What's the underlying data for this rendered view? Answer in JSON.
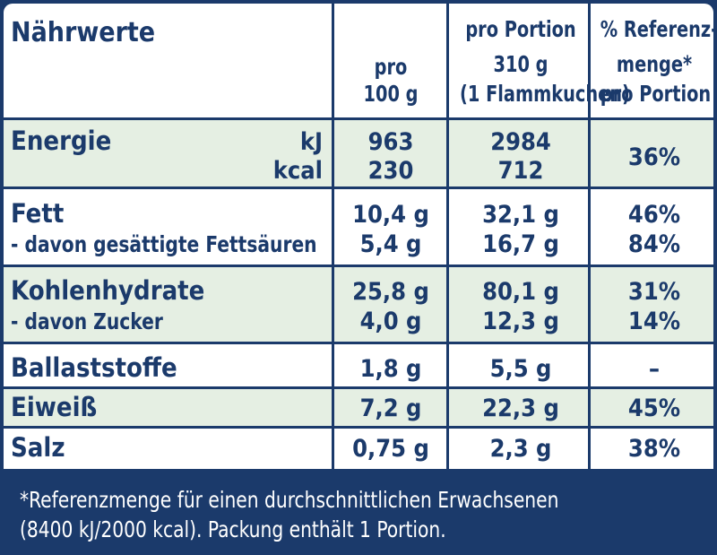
{
  "header": {
    "title": "Nährwerte",
    "col1": [
      "pro",
      "100 g"
    ],
    "col2": [
      "pro Portion",
      "310 g",
      "(1 Flammkuchen)"
    ],
    "col3": [
      "% Referenz-",
      "menge*",
      "pro Portion"
    ]
  },
  "energie": {
    "name": "Energie",
    "unit_kj": "kJ",
    "unit_kcal": "kcal",
    "kj_100g": "963",
    "kcal_100g": "230",
    "kj_portion": "2984",
    "kcal_portion": "712",
    "ri": "36%"
  },
  "fett": {
    "name": "Fett",
    "per100": "10,4 g",
    "portion": "32,1 g",
    "ri": "46%",
    "sub_name": "- davon gesättigte Fettsäuren",
    "sub_per100": "5,4 g",
    "sub_portion": "16,7 g",
    "sub_ri": "84%"
  },
  "kohlenhydrate": {
    "name": "Kohlenhydrate",
    "per100": "25,8 g",
    "portion": "80,1 g",
    "ri": "31%",
    "sub_name": "- davon Zucker",
    "sub_per100": "4,0 g",
    "sub_portion": "12,3 g",
    "sub_ri": "14%"
  },
  "ballaststoffe": {
    "name": "Ballaststoffe",
    "per100": "1,8 g",
    "portion": "5,5 g",
    "ri": "–"
  },
  "eiweiss": {
    "name": "Eiweiß",
    "per100": "7,2 g",
    "portion": "22,3 g",
    "ri": "45%"
  },
  "salz": {
    "name": "Salz",
    "per100": "0,75 g",
    "portion": "2,3 g",
    "ri": "38%"
  },
  "footnote": {
    "line1": "*Referenzmenge für einen durchschnittlichen Erwachsenen",
    "line2": "(8400 kJ/2000 kcal). Packung enthält 1 Portion."
  },
  "colors": {
    "ink": "#1b3a6b",
    "band": "#e5efe3",
    "background": "#ffffff"
  }
}
